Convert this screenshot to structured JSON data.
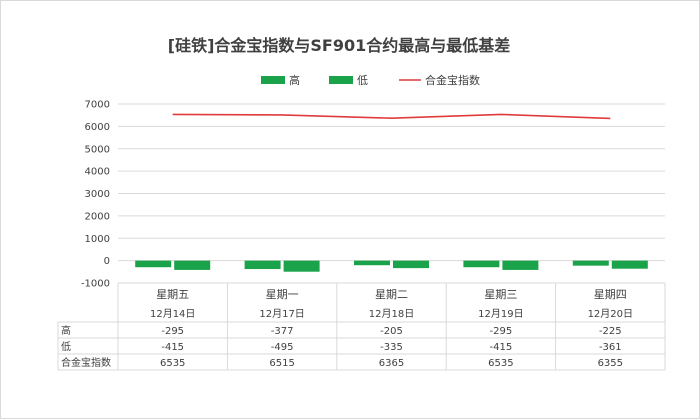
{
  "chart_data": {
    "type": "bar",
    "title": "[硅铁]合金宝指数与SF901合约最高与最低基差",
    "categories": [
      "星期五",
      "星期一",
      "星期二",
      "星期三",
      "星期四"
    ],
    "dates": [
      "12月14日",
      "12月17日",
      "12月18日",
      "12月19日",
      "12月20日"
    ],
    "ylim": [
      -1000,
      7000
    ],
    "yticks": [
      7000,
      6000,
      5000,
      4000,
      3000,
      2000,
      1000,
      0,
      -1000
    ],
    "grid": true,
    "legend_position": "top",
    "series": [
      {
        "name": "高",
        "type": "bar",
        "color": "#1aa34a",
        "values": [
          -295,
          -377,
          -205,
          -295,
          -225
        ]
      },
      {
        "name": "低",
        "type": "bar",
        "color": "#1aa34a",
        "values": [
          -415,
          -495,
          -335,
          -415,
          -361
        ]
      },
      {
        "name": "合金宝指数",
        "type": "line",
        "color": "#e03c3c",
        "values": [
          6535,
          6515,
          6365,
          6535,
          6355
        ]
      }
    ],
    "table": {
      "rows": [
        {
          "label": "高",
          "values": [
            "-295",
            "-377",
            "-205",
            "-295",
            "-225"
          ]
        },
        {
          "label": "低",
          "values": [
            "-415",
            "-495",
            "-335",
            "-415",
            "-361"
          ]
        },
        {
          "label": "合金宝指数",
          "values": [
            "6535",
            "6515",
            "6365",
            "6535",
            "6355"
          ]
        }
      ]
    }
  }
}
